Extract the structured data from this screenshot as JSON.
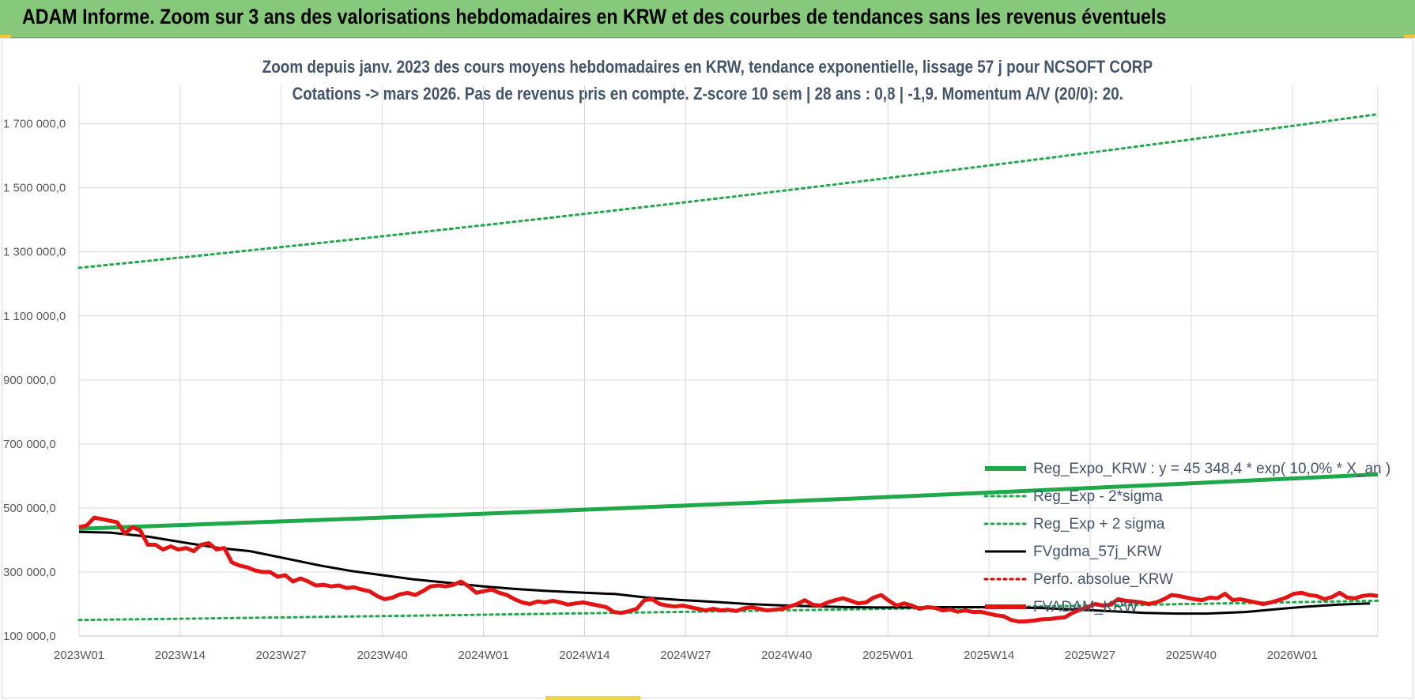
{
  "banner": {
    "title": "ADAM Informe. Zoom sur 3 ans des valorisations hebdomadaires en KRW et des courbes de tendances sans les revenus éventuels"
  },
  "chart_data": {
    "type": "line",
    "title_line1": "Zoom depuis janv. 2023 des cours moyens hebdomadaires en KRW, tendance exponentielle, lissage 57 j pour NCSOFT CORP",
    "title_line2": "Cotations -> mars 2026. Pas de revenus pris en compte. Z-score 10 sem | 28 ans : 0,8 | -1,9. Momentum A/V (20/0): 20.",
    "ylim": [
      100000,
      1800000
    ],
    "yticks": [
      100000,
      300000,
      500000,
      700000,
      900000,
      1100000,
      1300000,
      1500000,
      1700000
    ],
    "ytick_labels": [
      "100 000,0",
      "300 000,0",
      "500 000,0",
      "700 000,0",
      "900 000,0",
      "1 100 000,0",
      "1 300 000,0",
      "1 500 000,0",
      "1 700 000,0"
    ],
    "x_weeks": 167,
    "xtick_positions": [
      0,
      13,
      26,
      39,
      52,
      65,
      78,
      91,
      104,
      117,
      130,
      143,
      156
    ],
    "xtick_labels": [
      "2023W01",
      "2023W14",
      "2023W27",
      "2023W40",
      "2024W01",
      "2024W14",
      "2024W27",
      "2024W40",
      "2025W01",
      "2025W14",
      "2025W27",
      "2025W40",
      "2026W01"
    ],
    "series": [
      {
        "name": "Reg_Expo_KRW : y = 45 348,4 * exp( 10,0% * X_an )",
        "color": "#1fa84a",
        "style": "solid-thick",
        "start": 435000,
        "end": 605000,
        "points": 21
      },
      {
        "name": "Reg_Exp - 2*sigma",
        "color": "#1fa84a",
        "style": "dotted",
        "start": 150000,
        "end": 210000,
        "points": 21
      },
      {
        "name": "Reg_Exp + 2 sigma",
        "color": "#1fa84a",
        "style": "dotted",
        "start": 1250000,
        "end": 1730000,
        "points": 21
      },
      {
        "name": "FVgdma_57j_KRW",
        "color": "#000000",
        "style": "solid",
        "values": [
          425000,
          423000,
          410000,
          390000,
          375000,
          365000,
          340000,
          320000,
          303000,
          290000,
          277000,
          265000,
          255000,
          247000,
          241000,
          235000,
          231000,
          220000,
          213000,
          206000,
          200000,
          196000,
          193000,
          190000,
          189000,
          189000,
          190000,
          190000,
          189000,
          187000,
          183000,
          177000,
          172000,
          170000,
          170000,
          175000,
          184000,
          192000,
          198000,
          202000,
          205000,
          208000,
          210000,
          212000,
          215000,
          218000,
          220000,
          221000,
          222000,
          223000
        ],
        "dates": [
          0,
          4,
          9,
          14,
          18,
          22,
          27,
          31,
          35,
          39,
          43,
          48,
          52,
          56,
          60,
          65,
          69,
          73,
          77,
          82,
          86,
          90,
          94,
          99,
          103,
          107,
          111,
          116,
          120,
          124,
          128,
          133,
          137,
          141,
          145,
          150,
          154,
          158,
          162,
          166,
          167,
          167,
          167,
          167,
          167,
          167,
          167,
          167,
          167,
          167
        ]
      },
      {
        "name": "Perfo. absolue_KRW",
        "color": "#e00000",
        "style": "dotted",
        "values": []
      },
      {
        "name": "FVADAM_KRW",
        "color": "#e31414",
        "style": "solid-thick",
        "values": [
          440000,
          445000,
          470000,
          465000,
          460000,
          455000,
          420000,
          440000,
          430000,
          385000,
          385000,
          370000,
          380000,
          370000,
          375000,
          365000,
          385000,
          390000,
          370000,
          375000,
          330000,
          320000,
          315000,
          305000,
          300000,
          300000,
          285000,
          290000,
          270000,
          280000,
          270000,
          258000,
          260000,
          255000,
          258000,
          250000,
          252000,
          245000,
          240000,
          225000,
          215000,
          220000,
          230000,
          235000,
          228000,
          240000,
          255000,
          258000,
          255000,
          260000,
          270000,
          255000,
          235000,
          240000,
          245000,
          235000,
          228000,
          215000,
          205000,
          200000,
          208000,
          205000,
          210000,
          205000,
          198000,
          202000,
          205000,
          200000,
          195000,
          190000,
          175000,
          172000,
          178000,
          185000,
          212000,
          215000,
          200000,
          195000,
          192000,
          195000,
          190000,
          185000,
          180000,
          185000,
          180000,
          182000,
          178000,
          186000,
          190000,
          185000,
          180000,
          182000,
          185000,
          192000,
          200000,
          212000,
          198000,
          195000,
          205000,
          212000,
          218000,
          210000,
          202000,
          205000,
          220000,
          228000,
          210000,
          195000,
          202000,
          195000,
          185000,
          190000,
          188000,
          180000,
          183000,
          176000,
          180000,
          175000,
          176000,
          170000,
          165000,
          162000,
          150000,
          145000,
          146000,
          148000,
          152000,
          153000,
          156000,
          158000,
          172000,
          182000,
          190000,
          200000,
          195000,
          198000,
          215000,
          210000,
          208000,
          205000,
          200000,
          205000,
          215000,
          228000,
          225000,
          220000,
          215000,
          212000,
          220000,
          218000,
          232000,
          212000,
          215000,
          210000,
          205000,
          200000,
          205000,
          212000,
          220000,
          232000,
          235000,
          228000,
          225000,
          215000,
          222000,
          235000,
          220000,
          218000,
          225000,
          228000,
          225000
        ]
      }
    ],
    "legend_position": "bottom-right"
  }
}
